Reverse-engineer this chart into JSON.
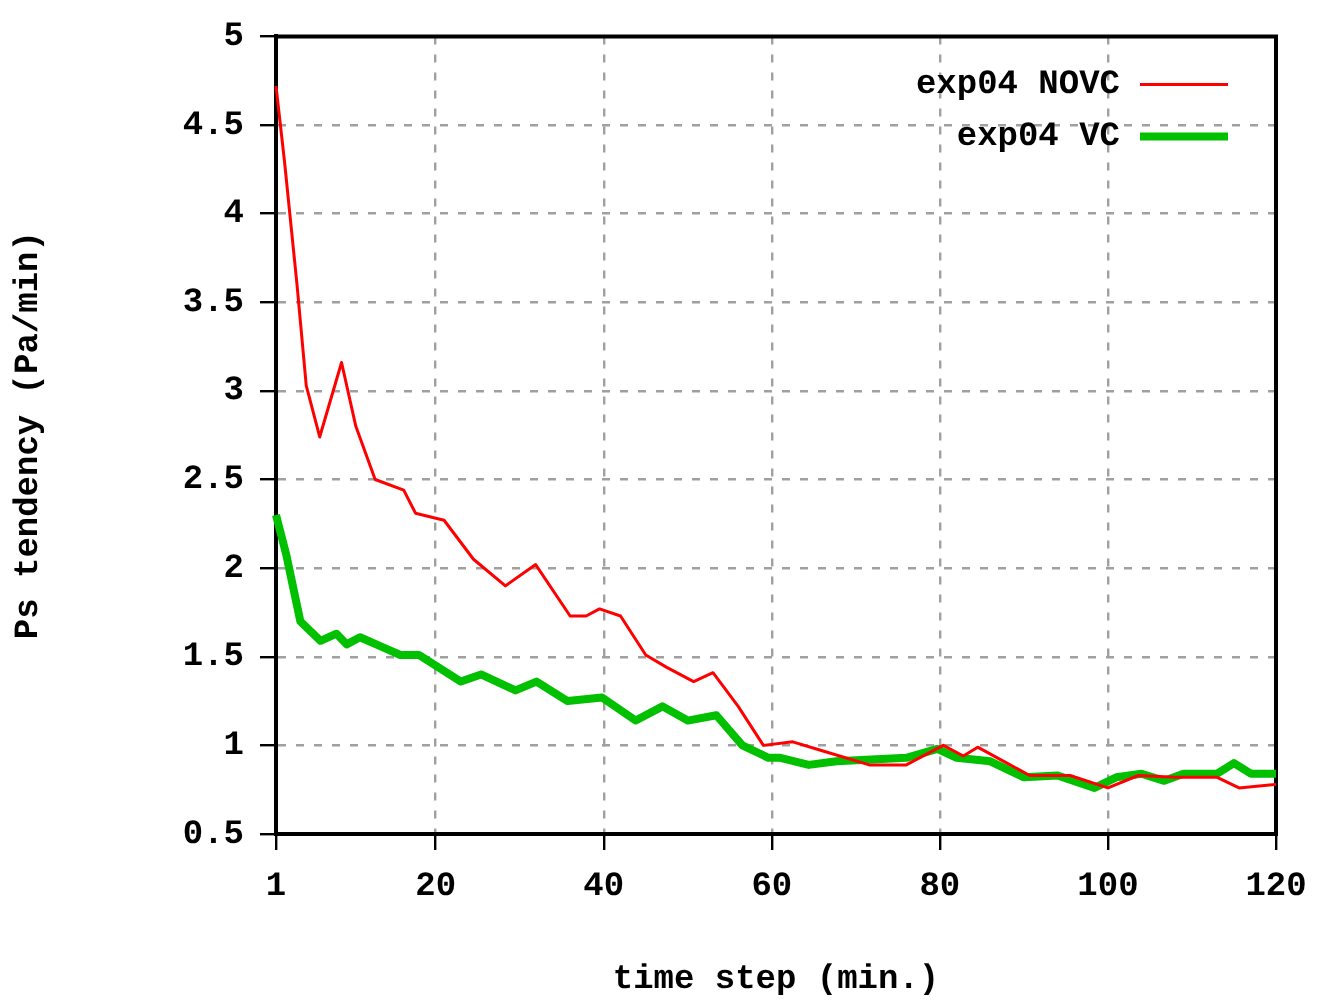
{
  "chart_data": {
    "type": "line",
    "xlabel": "time step (min.)",
    "ylabel": "Ps tendency (Pa/min)",
    "xlim": [
      1,
      120
    ],
    "xticks": [
      1,
      20,
      40,
      60,
      80,
      100,
      120
    ],
    "ylim": [
      0.5,
      5
    ],
    "yticks": [
      0.5,
      1,
      1.5,
      2,
      2.5,
      3,
      3.5,
      4,
      4.5,
      5
    ],
    "grid": true,
    "legend": "top right",
    "marker": "none",
    "line_style": "solid",
    "series": [
      {
        "name": "exp04 NOVC",
        "color": "#ff0000",
        "x": [
          1,
          2,
          3.5,
          4.6,
          6.2,
          7.5,
          8.8,
          10.5,
          12.8,
          16.2,
          17.6,
          21,
          24.5,
          28.3,
          31.9,
          36,
          37.9,
          39.5,
          42,
          45,
          47.5,
          50.7,
          53,
          56,
          59,
          62.5,
          66,
          71.6,
          76,
          80.4,
          82.8,
          84.5,
          87.6,
          90.7,
          95.5,
          100,
          103.6,
          108,
          113,
          115.6,
          120
        ],
        "values": [
          4.72,
          4.3,
          3.6,
          3.03,
          2.74,
          2.95,
          3.16,
          2.8,
          2.5,
          2.44,
          2.31,
          2.27,
          2.05,
          1.9,
          2.02,
          1.73,
          1.73,
          1.77,
          1.73,
          1.51,
          1.44,
          1.36,
          1.41,
          1.22,
          1.0,
          1.02,
          0.97,
          0.89,
          0.89,
          1.0,
          0.94,
          0.99,
          0.91,
          0.83,
          0.83,
          0.76,
          0.83,
          0.82,
          0.82,
          0.76,
          0.78
        ]
      },
      {
        "name": "exp04 VC",
        "color": "#00c000",
        "x": [
          1,
          2.2,
          3.9,
          6.3,
          8.2,
          9.4,
          11,
          13.4,
          15.8,
          18,
          23,
          25.4,
          29.5,
          32,
          35.7,
          39.8,
          43.8,
          47,
          50,
          53.4,
          56.5,
          59.6,
          61,
          64.4,
          67.7,
          76,
          79.7,
          82,
          86,
          90,
          94,
          98.4,
          101,
          104,
          106.7,
          109,
          113,
          115,
          117,
          120
        ],
        "values": [
          2.3,
          2.08,
          1.7,
          1.59,
          1.63,
          1.57,
          1.61,
          1.56,
          1.51,
          1.51,
          1.36,
          1.4,
          1.31,
          1.36,
          1.25,
          1.27,
          1.14,
          1.22,
          1.14,
          1.17,
          1.0,
          0.93,
          0.93,
          0.89,
          0.91,
          0.93,
          0.98,
          0.93,
          0.91,
          0.82,
          0.83,
          0.76,
          0.82,
          0.84,
          0.8,
          0.84,
          0.84,
          0.9,
          0.84,
          0.84
        ]
      }
    ]
  }
}
